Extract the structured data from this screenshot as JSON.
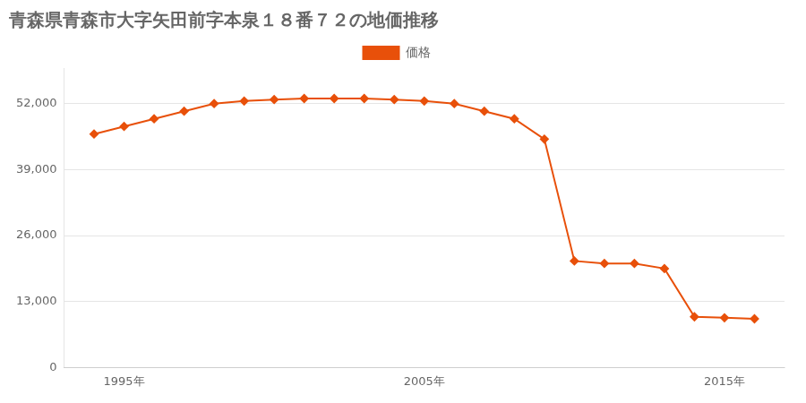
{
  "chart_data": {
    "type": "line",
    "title": "青森県青森市大字矢田前字本泉１８番７２の地価推移",
    "x": [
      1994,
      1995,
      1996,
      1997,
      1998,
      1999,
      2000,
      2001,
      2002,
      2003,
      2004,
      2005,
      2006,
      2007,
      2008,
      2009,
      2010,
      2011,
      2012,
      2013,
      2014,
      2015,
      2016
    ],
    "series": [
      {
        "name": "価格",
        "color": "#e8500a",
        "marker": "diamond",
        "values": [
          46000,
          47500,
          49000,
          50500,
          52000,
          52500,
          52800,
          53000,
          53000,
          53000,
          52800,
          52500,
          52000,
          50500,
          49000,
          45000,
          21000,
          20500,
          20500,
          19500,
          10000,
          9800,
          9600
        ]
      }
    ],
    "xlim": [
      1993,
      2017
    ],
    "xticks": [
      {
        "value": 1995,
        "label": "1995年"
      },
      {
        "value": 2005,
        "label": "2005年"
      },
      {
        "value": 2015,
        "label": "2015年"
      }
    ],
    "ylim": [
      0,
      59000
    ],
    "yticks": [
      0,
      {
        "value": 13000,
        "label": "13,000"
      },
      {
        "value": 26000,
        "label": "26,000"
      },
      {
        "value": 39000,
        "label": "39,000"
      },
      {
        "value": 52000,
        "label": "52,000"
      }
    ],
    "grid": "y",
    "legend": "top"
  }
}
